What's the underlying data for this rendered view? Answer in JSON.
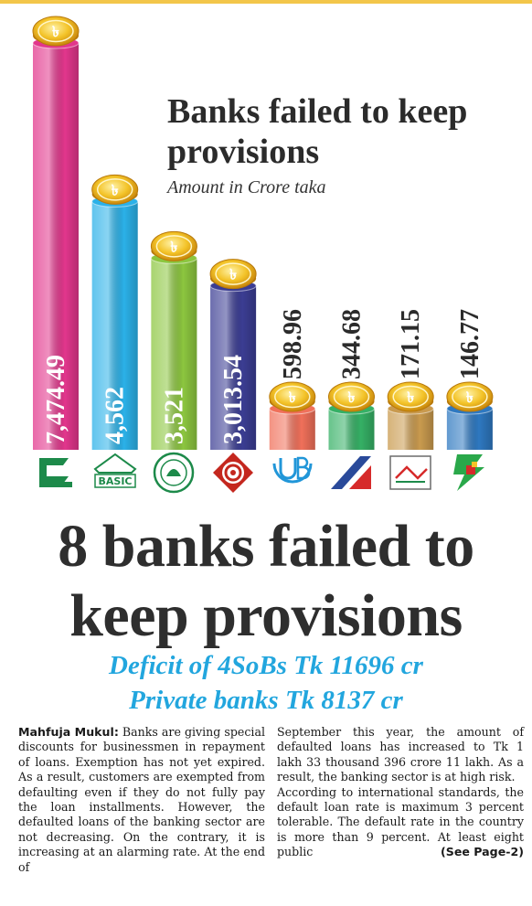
{
  "chart_data": {
    "type": "bar",
    "title": "Banks failed to keep provisions",
    "subtitle": "Amount in Crore taka",
    "categories": [
      "",
      "BASIC",
      "",
      "",
      "",
      "",
      "",
      ""
    ],
    "series": [
      {
        "values": [
          7474.49,
          4562,
          3521,
          3013.54,
          598.96,
          344.68,
          171.15,
          146.77
        ]
      }
    ],
    "value_labels": [
      "7,474.49",
      "4,562",
      "3,521",
      "3,013.54",
      "598.96",
      "344.68",
      "171.15",
      "146.77"
    ],
    "bar_colors": [
      "#e2368c",
      "#2bb1e8",
      "#8cc63f",
      "#3b3d93",
      "#f0705a",
      "#35b065",
      "#c99a4e",
      "#2e78c0"
    ],
    "coin_symbol": "৳"
  },
  "headline": {
    "line1": "8 banks failed to",
    "line2": "keep provisions"
  },
  "subheads": [
    "Deficit of 4SoBs Tk 11696 cr",
    "Private banks Tk 8137 cr"
  ],
  "article": {
    "byline": "Mahfuja Mukul:",
    "col1": "Banks are giving special discounts for businessmen in repayment of loans. Exemption has not yet expired. As a result, customers are exempted from defaulting even if they do not fully pay the loan installments. However, the defaulted loans of the banking sector are not decreasing. On the contrary, it is increasing at an alarming rate. At the end of",
    "col2_p1": "September this year, the amount of defaulted loans has increased to Tk 1 lakh 33 thousand 396 crore 11 lakh. As a result, the banking sector is at high risk.",
    "col2_p2": "According to international standards, the default loan rate is maximum 3 percent tolerable. The default rate in the country is more than 9 percent. At least eight public",
    "see_more": "(See Page-2)"
  }
}
